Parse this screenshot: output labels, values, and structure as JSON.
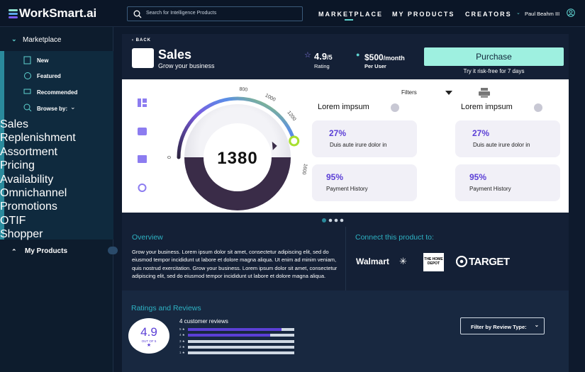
{
  "header": {
    "logo": "WorkSmart.ai",
    "search_placeholder": "Search for Intelligence Products",
    "nav": [
      "MARKETPLACE",
      "MY PRODUCTS",
      "CREATORS"
    ],
    "user": "Paul Beahm III"
  },
  "sidebar": {
    "section": "Marketplace",
    "items": [
      "New",
      "Featured",
      "Recommended",
      "Browse by:"
    ],
    "browse": [
      "Sales",
      "Replenishment",
      "Assortment",
      "Pricing",
      "Availability",
      "Omnichannel",
      "Promotions",
      "OTIF",
      "Shopper"
    ],
    "section2": "My Products"
  },
  "product": {
    "back": "BACK",
    "name": "Sales",
    "subtitle": "Grow your business",
    "rating": "4.9",
    "rating_unit": "/5",
    "rating_label": "Rating",
    "price": "$500",
    "price_unit": "/month",
    "price_label": "Per User",
    "purchase": "Purchase",
    "trial": "Try it risk-free for 7 days"
  },
  "dashboard": {
    "gauge": {
      "value": 1380,
      "min": 0,
      "max": 1600,
      "ticks": [
        0,
        800,
        1000,
        1200,
        1600
      ]
    },
    "filters": "Filters",
    "columns": [
      {
        "title": "Lorem impsum",
        "cards": [
          {
            "value": "27%",
            "label": "Duis aute irure dolor in"
          },
          {
            "value": "95%",
            "label": "Payment History"
          }
        ]
      },
      {
        "title": "Lorem impsum",
        "cards": [
          {
            "value": "27%",
            "label": "Duis aute irure dolor in"
          },
          {
            "value": "95%",
            "label": "Payment History"
          }
        ]
      }
    ]
  },
  "overview": {
    "title": "Overview",
    "text": "Grow your business. Lorem ipsum dolor sit amet, consectetur adipiscing elit, sed do eiusmod tempor incididunt ut labore et dolore magna aliqua. Ut enim ad minim veniam, quis nostrud exercitation. Grow your business. Lorem ipsum dolor sit amet, consectetur adipiscing elit, sed do eiusmod tempor incididunt ut labore et dolore magna aliqua."
  },
  "connect": {
    "title": "Connect this product to:",
    "partners": [
      "Walmart",
      "THE HOME DEPOT",
      "TARGET"
    ]
  },
  "ratings": {
    "title": "Ratings and Reviews",
    "score": "4.9",
    "out_of": "OUT OF 5",
    "count": "4 customer reviews",
    "bar_labels": [
      "5 ★",
      "4 ★",
      "3 ★",
      "2 ★",
      "1 ★"
    ],
    "bar_values": [
      88,
      77,
      0,
      0,
      0
    ],
    "filter": "Filter by Review Type:"
  }
}
